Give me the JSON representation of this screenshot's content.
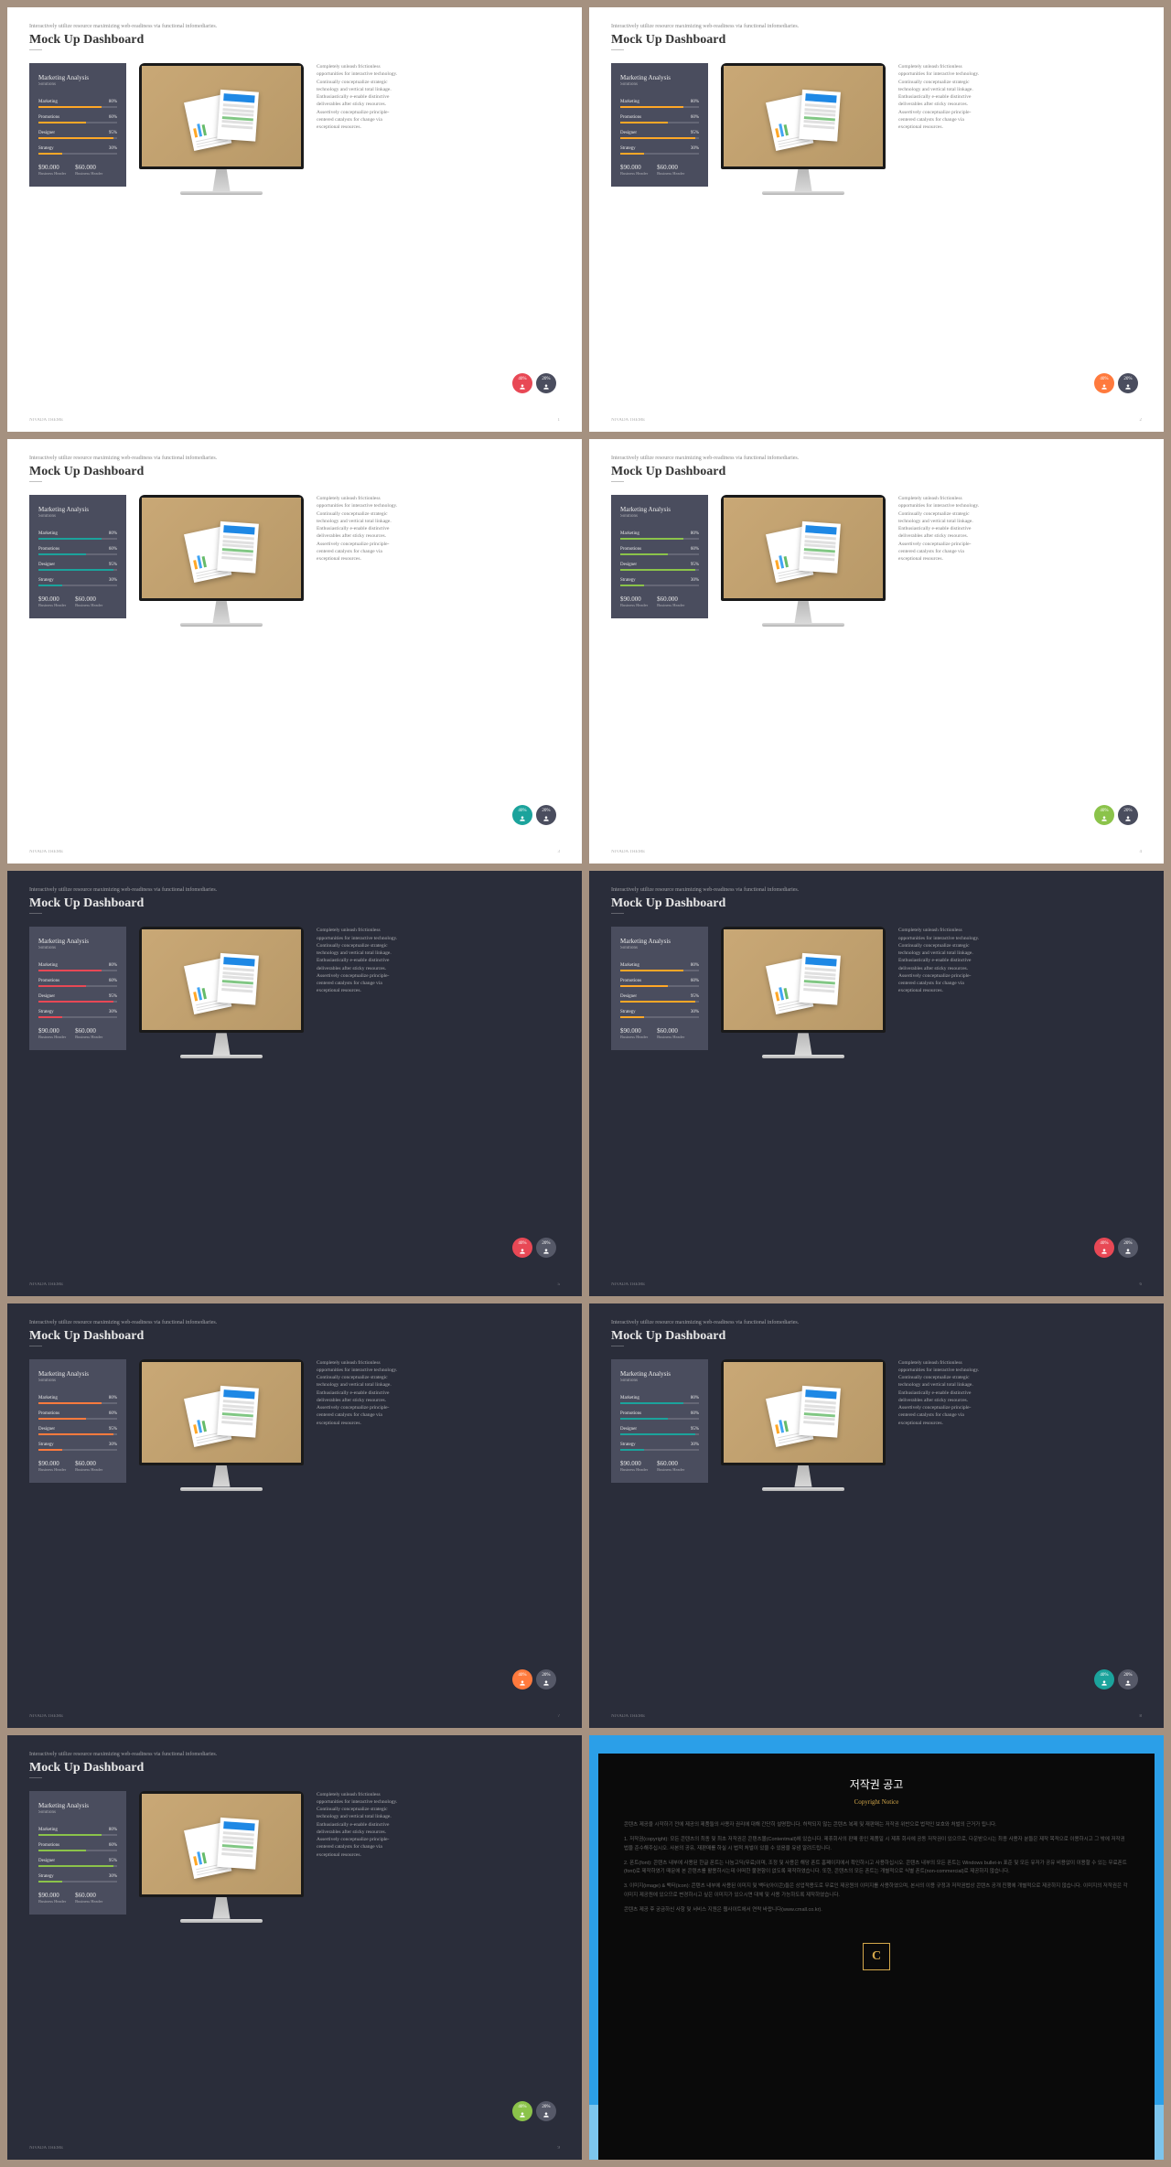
{
  "common": {
    "subtitle": "Interactively utilize resource maximizing web-readiness via functional infomediaries.",
    "title": "Mock Up Dashboard",
    "panel_title": "Marketing Analysis",
    "panel_sub": "Solutions",
    "bars": [
      {
        "label": "Marketing",
        "pct": "80%",
        "val": 80
      },
      {
        "label": "Promotions",
        "pct": "60%",
        "val": 60
      },
      {
        "label": "Designer",
        "pct": "95%",
        "val": 95
      },
      {
        "label": "Strategy",
        "pct": "30%",
        "val": 30
      }
    ],
    "stat1_val": "$90.000",
    "stat1_lbl": "Business Header",
    "stat2_val": "$60.000",
    "stat2_lbl": "Business Header",
    "desc": "Completely unleash frictionless opportunities for interactive technology. Continually conceptualize strategic technology and vertical total linkage. Enthusiastically e-enable distinctive deliverables after sticky resources. Assertively conceptualize principle-centered catalysts for change via exceptional resources.",
    "footer": "NIVADA THEME",
    "circle1_pct": "40%",
    "circle2_pct": "20%"
  },
  "slides": [
    {
      "theme": "light",
      "bar_colors": [
        "#ffa726",
        "#ffa726",
        "#ffa726",
        "#ffa726"
      ],
      "circle1": "#e84855",
      "circle2": "#4a4d5e",
      "page": "1"
    },
    {
      "theme": "light",
      "bar_colors": [
        "#ffa726",
        "#ffa726",
        "#ffa726",
        "#ffa726"
      ],
      "circle1": "#ff7a3d",
      "circle2": "#4a4d5e",
      "page": "2"
    },
    {
      "theme": "light",
      "bar_colors": [
        "#1ba39c",
        "#1ba39c",
        "#1ba39c",
        "#1ba39c"
      ],
      "circle1": "#1ba39c",
      "circle2": "#4a4d5e",
      "page": "3"
    },
    {
      "theme": "light",
      "bar_colors": [
        "#8bc34a",
        "#8bc34a",
        "#8bc34a",
        "#8bc34a"
      ],
      "circle1": "#8bc34a",
      "circle2": "#4a4d5e",
      "page": "4"
    },
    {
      "theme": "dark",
      "bar_colors": [
        "#e84855",
        "#e84855",
        "#e84855",
        "#e84855"
      ],
      "circle1": "#e84855",
      "circle2": "#565968",
      "page": "5"
    },
    {
      "theme": "dark",
      "bar_colors": [
        "#ffa726",
        "#ffa726",
        "#ffa726",
        "#ffa726"
      ],
      "circle1": "#e84855",
      "circle2": "#565968",
      "page": "6"
    },
    {
      "theme": "dark",
      "bar_colors": [
        "#ff7a3d",
        "#ff7a3d",
        "#ff7a3d",
        "#ff7a3d"
      ],
      "circle1": "#ff7a3d",
      "circle2": "#565968",
      "page": "7"
    },
    {
      "theme": "dark",
      "bar_colors": [
        "#1ba39c",
        "#1ba39c",
        "#1ba39c",
        "#1ba39c"
      ],
      "circle1": "#1ba39c",
      "circle2": "#565968",
      "page": "8"
    },
    {
      "theme": "dark",
      "bar_colors": [
        "#8bc34a",
        "#8bc34a",
        "#8bc34a",
        "#8bc34a"
      ],
      "circle1": "#8bc34a",
      "circle2": "#565968",
      "page": "9"
    }
  ],
  "copyright": {
    "title": "저작권 공고",
    "sub": "Copyright Notice",
    "p1": "콘텐츠 제공을 시작하기 전에 제공의 제품들의 사용자 권리에 대해 간단히 설명합니다. 허락되지 않는 콘텐츠 복제 및 재판매는 저작권 위반으로 법적인 보호와 처벌의 근거가 됩니다.",
    "p2": "1. 저작권(copyright): 모든 콘텐츠의 최종 및 최초 저작권은 콘텐츠몰(Contentmall)에 있습니다. 제휴회사의 판매 중인 제품일 시 제휴 회사에 공동 저작권이 있으므로, 다운받으시는 최종 사용자 분들은 제작 목적으로 이용하시고 그 밖에 저작권법을 준수해주십시오. 사본의 공유, 재판매를 하실 시 법적 처벌이 있을 수 있음을 유념 알려드립니다.",
    "p3": "2. 폰트(font): 콘텐츠 내부에 사용된 한글 폰트는 나눔고딕(무료)이며, 조정 및 사용은 해당 폰트 홈페이지에서 확인하시고 사용하십시오. 콘텐츠 내부의 모든 폰트는 Windows bullet-in 표준 및 모든 유저가 공유 비용없이 이용할 수 있는 무료폰트(font)로 제작하였기 때문에 본 콘텐츠를 활용하시는데 어떠한 불편함이 없도록 제작하였습니다. 또한, 콘텐츠의 모든 폰트는 개별적으로 식별 폰트(non-commercial)로 제공하지 않습니다.",
    "p4": "3. 이미지(image) & 백터(icon): 콘텐츠 내부에 사용된 이미지 및 백터(아이콘)들은 상업적용도로 무료인 제공원의 이미지를 사용하였으며, 본사의 이용 규정과 저작권법상 콘텐츠 공개 진행에 개별적으로 제공하지 않습니다. 이미지의 저작권은 각 이미지 제공원에 있으므로 변경하시고 싶은 이미지가 있으시면 대체 및 사용 가능하도록 제작하였습니다.",
    "p5": "콘텐츠 제공 후 궁금하신 사항 및 서비스 지원은 웹사이트에서 연락 바랍니다(www.cmall.co.kr)."
  }
}
